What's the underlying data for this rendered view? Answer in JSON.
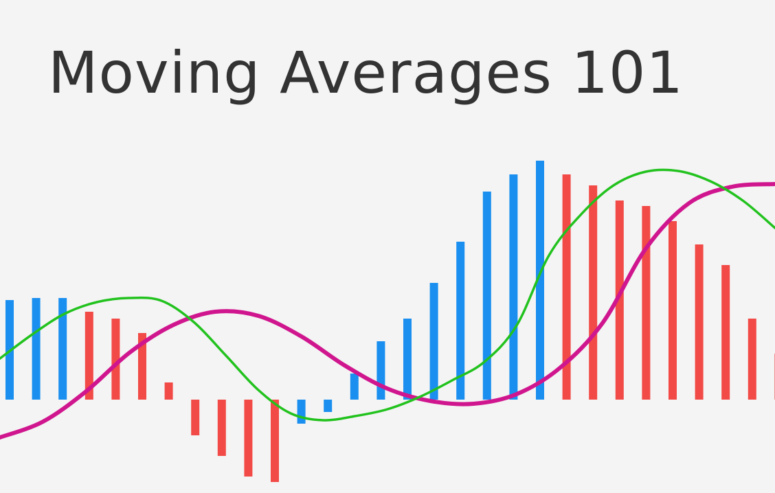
{
  "title": "Moving Averages 101",
  "colors": {
    "background": "#f4f4f4",
    "title_text": "#333333",
    "bar_up": "#1a8ff0",
    "bar_down": "#f24a46",
    "line_fast": "#22c21e",
    "line_slow": "#d0168e"
  },
  "chart_data": {
    "type": "bar",
    "grid": false,
    "ylim": [
      -120,
      350
    ],
    "bars": {
      "values": [
        145,
        148,
        148,
        128,
        118,
        97,
        25,
        -52,
        -82,
        -112,
        -120,
        -35,
        -18,
        38,
        85,
        118,
        170,
        230,
        303,
        328,
        348,
        328,
        312,
        290,
        282,
        260,
        226,
        196,
        118,
        67
      ],
      "directions": [
        "up",
        "up",
        "up",
        "down",
        "down",
        "down",
        "down",
        "down",
        "down",
        "down",
        "down",
        "up",
        "up",
        "up",
        "up",
        "up",
        "up",
        "up",
        "up",
        "up",
        "up",
        "down",
        "down",
        "down",
        "down",
        "down",
        "down",
        "down",
        "down",
        "down"
      ]
    },
    "series": [
      {
        "color": "#22c21e",
        "values": [
          60,
          95,
          125,
          142,
          148,
          144,
          113,
          64,
          14,
          -20,
          -30,
          -24,
          -14,
          4,
          28,
          55,
          108,
          210,
          270,
          312,
          332,
          333,
          318,
          290,
          250
        ]
      },
      {
        "color": "#d0168e",
        "values": [
          -55,
          -32,
          12,
          68,
          108,
          128,
          122,
          92,
          50,
          16,
          -2,
          -6,
          8,
          46,
          112,
          220,
          286,
          310,
          314
        ]
      }
    ]
  }
}
